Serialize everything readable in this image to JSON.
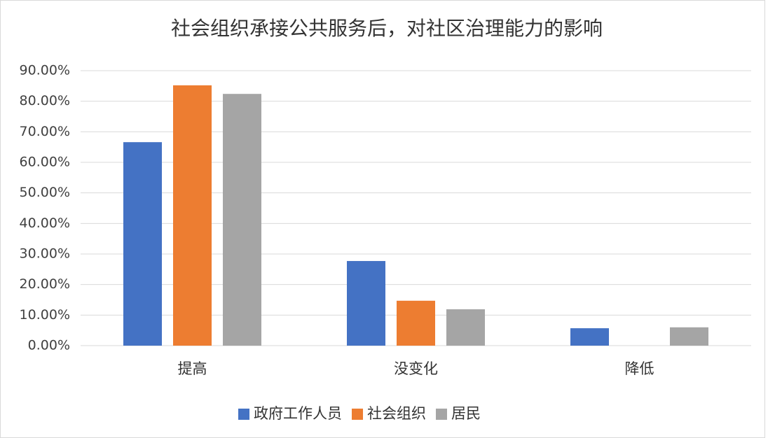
{
  "chart_data": {
    "type": "bar",
    "title": "社会组织承接公共服务后，对社区治理能力的影响",
    "categories": [
      "提高",
      "没变化",
      "降低"
    ],
    "series": [
      {
        "name": "政府工作人员",
        "color": "#4472c4",
        "values": [
          66.6,
          27.7,
          5.7
        ]
      },
      {
        "name": "社会组织",
        "color": "#ed7d31",
        "values": [
          85.2,
          14.7,
          0
        ]
      },
      {
        "name": "居民",
        "color": "#a5a5a5",
        "values": [
          82.4,
          11.9,
          6.0
        ]
      }
    ],
    "ylim": [
      0,
      90
    ],
    "yticks": [
      {
        "value": 0,
        "label": "0.00%"
      },
      {
        "value": 10,
        "label": "10.00%"
      },
      {
        "value": 20,
        "label": "20.00%"
      },
      {
        "value": 30,
        "label": "30.00%"
      },
      {
        "value": 40,
        "label": "40.00%"
      },
      {
        "value": 50,
        "label": "50.00%"
      },
      {
        "value": 60,
        "label": "60.00%"
      },
      {
        "value": 70,
        "label": "70.00%"
      },
      {
        "value": 80,
        "label": "80.00%"
      },
      {
        "value": 90,
        "label": "90.00%"
      }
    ],
    "grid": true,
    "legend": "bottom"
  }
}
